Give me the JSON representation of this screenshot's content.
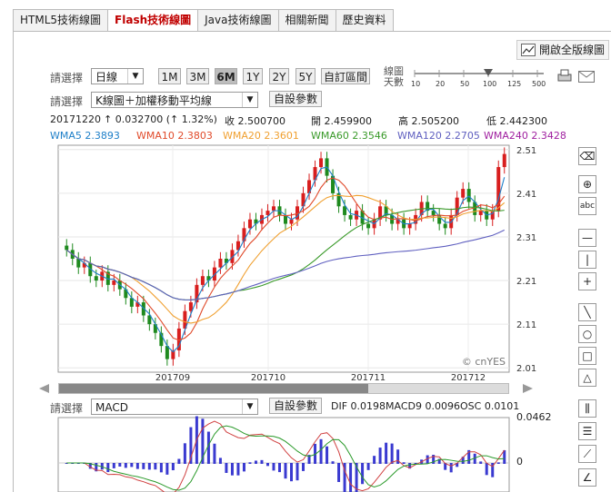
{
  "tabs": [
    {
      "label": "HTML5技術線圖"
    },
    {
      "label": "Flash技術線圖",
      "active": true
    },
    {
      "label": "Java技術線圖"
    },
    {
      "label": "相關新聞"
    },
    {
      "label": "歷史資料"
    }
  ],
  "toolbar": {
    "full_version_label": "開啟全版線圖",
    "select_label": "請選擇",
    "period_value": "日線",
    "periods": [
      "1M",
      "3M",
      "6M",
      "1Y",
      "2Y",
      "5Y"
    ],
    "active_period": "6M",
    "custom_range_label": "自訂區間",
    "ma_days_label_1": "線圖",
    "ma_days_label_2": "天數",
    "ma_days_ticks": [
      "10",
      "20",
      "50",
      "100",
      "125",
      "500"
    ],
    "chart_type_value": "K線圖＋加權移動平均線",
    "custom_params_label": "自設參數",
    "indicator_value": "MACD"
  },
  "quote": {
    "date": "20171220",
    "change": "↑ 0.032700 (↑ 1.32%)",
    "close": "收 2.500700",
    "open": "開 2.459900",
    "high": "高 2.505200",
    "low": "低 2.442300"
  },
  "wma": [
    {
      "label": "WMA5 2.3893",
      "color": "#1e7fc8"
    },
    {
      "label": "WMA10 2.3803",
      "color": "#e04a2a"
    },
    {
      "label": "WMA20 2.3601",
      "color": "#f0a030"
    },
    {
      "label": "WMA60 2.3546",
      "color": "#3a9a2a"
    },
    {
      "label": "WMA120 2.2705",
      "color": "#6060c0"
    },
    {
      "label": "WMA240 2.3428",
      "color": "#a020a0"
    }
  ],
  "macd_info": {
    "dif": "DIF 0.0198",
    "macd9": "MACD9 0.0096",
    "osc": "OSC 0.0101",
    "ymax": "0.0462",
    "zero": "0"
  },
  "chart_data": {
    "type": "candlestick",
    "y_ticks": [
      2.51,
      2.41,
      2.31,
      2.21,
      2.11,
      2.01
    ],
    "ylim": [
      2.0,
      2.52
    ],
    "x_labels": [
      "201709",
      "201710",
      "201711",
      "201712"
    ],
    "watermark": "© cnYES",
    "closes": [
      2.28,
      2.26,
      2.24,
      2.25,
      2.22,
      2.21,
      2.23,
      2.2,
      2.21,
      2.19,
      2.17,
      2.15,
      2.16,
      2.13,
      2.11,
      2.09,
      2.06,
      2.03,
      2.05,
      2.1,
      2.14,
      2.16,
      2.2,
      2.22,
      2.21,
      2.24,
      2.26,
      2.25,
      2.28,
      2.3,
      2.33,
      2.35,
      2.34,
      2.36,
      2.37,
      2.38,
      2.36,
      2.34,
      2.35,
      2.38,
      2.41,
      2.44,
      2.47,
      2.49,
      2.45,
      2.41,
      2.38,
      2.36,
      2.35,
      2.37,
      2.34,
      2.33,
      2.35,
      2.38,
      2.36,
      2.34,
      2.35,
      2.33,
      2.34,
      2.36,
      2.39,
      2.37,
      2.36,
      2.34,
      2.33,
      2.36,
      2.4,
      2.42,
      2.39,
      2.36,
      2.37,
      2.35,
      2.37,
      2.47,
      2.5
    ]
  }
}
